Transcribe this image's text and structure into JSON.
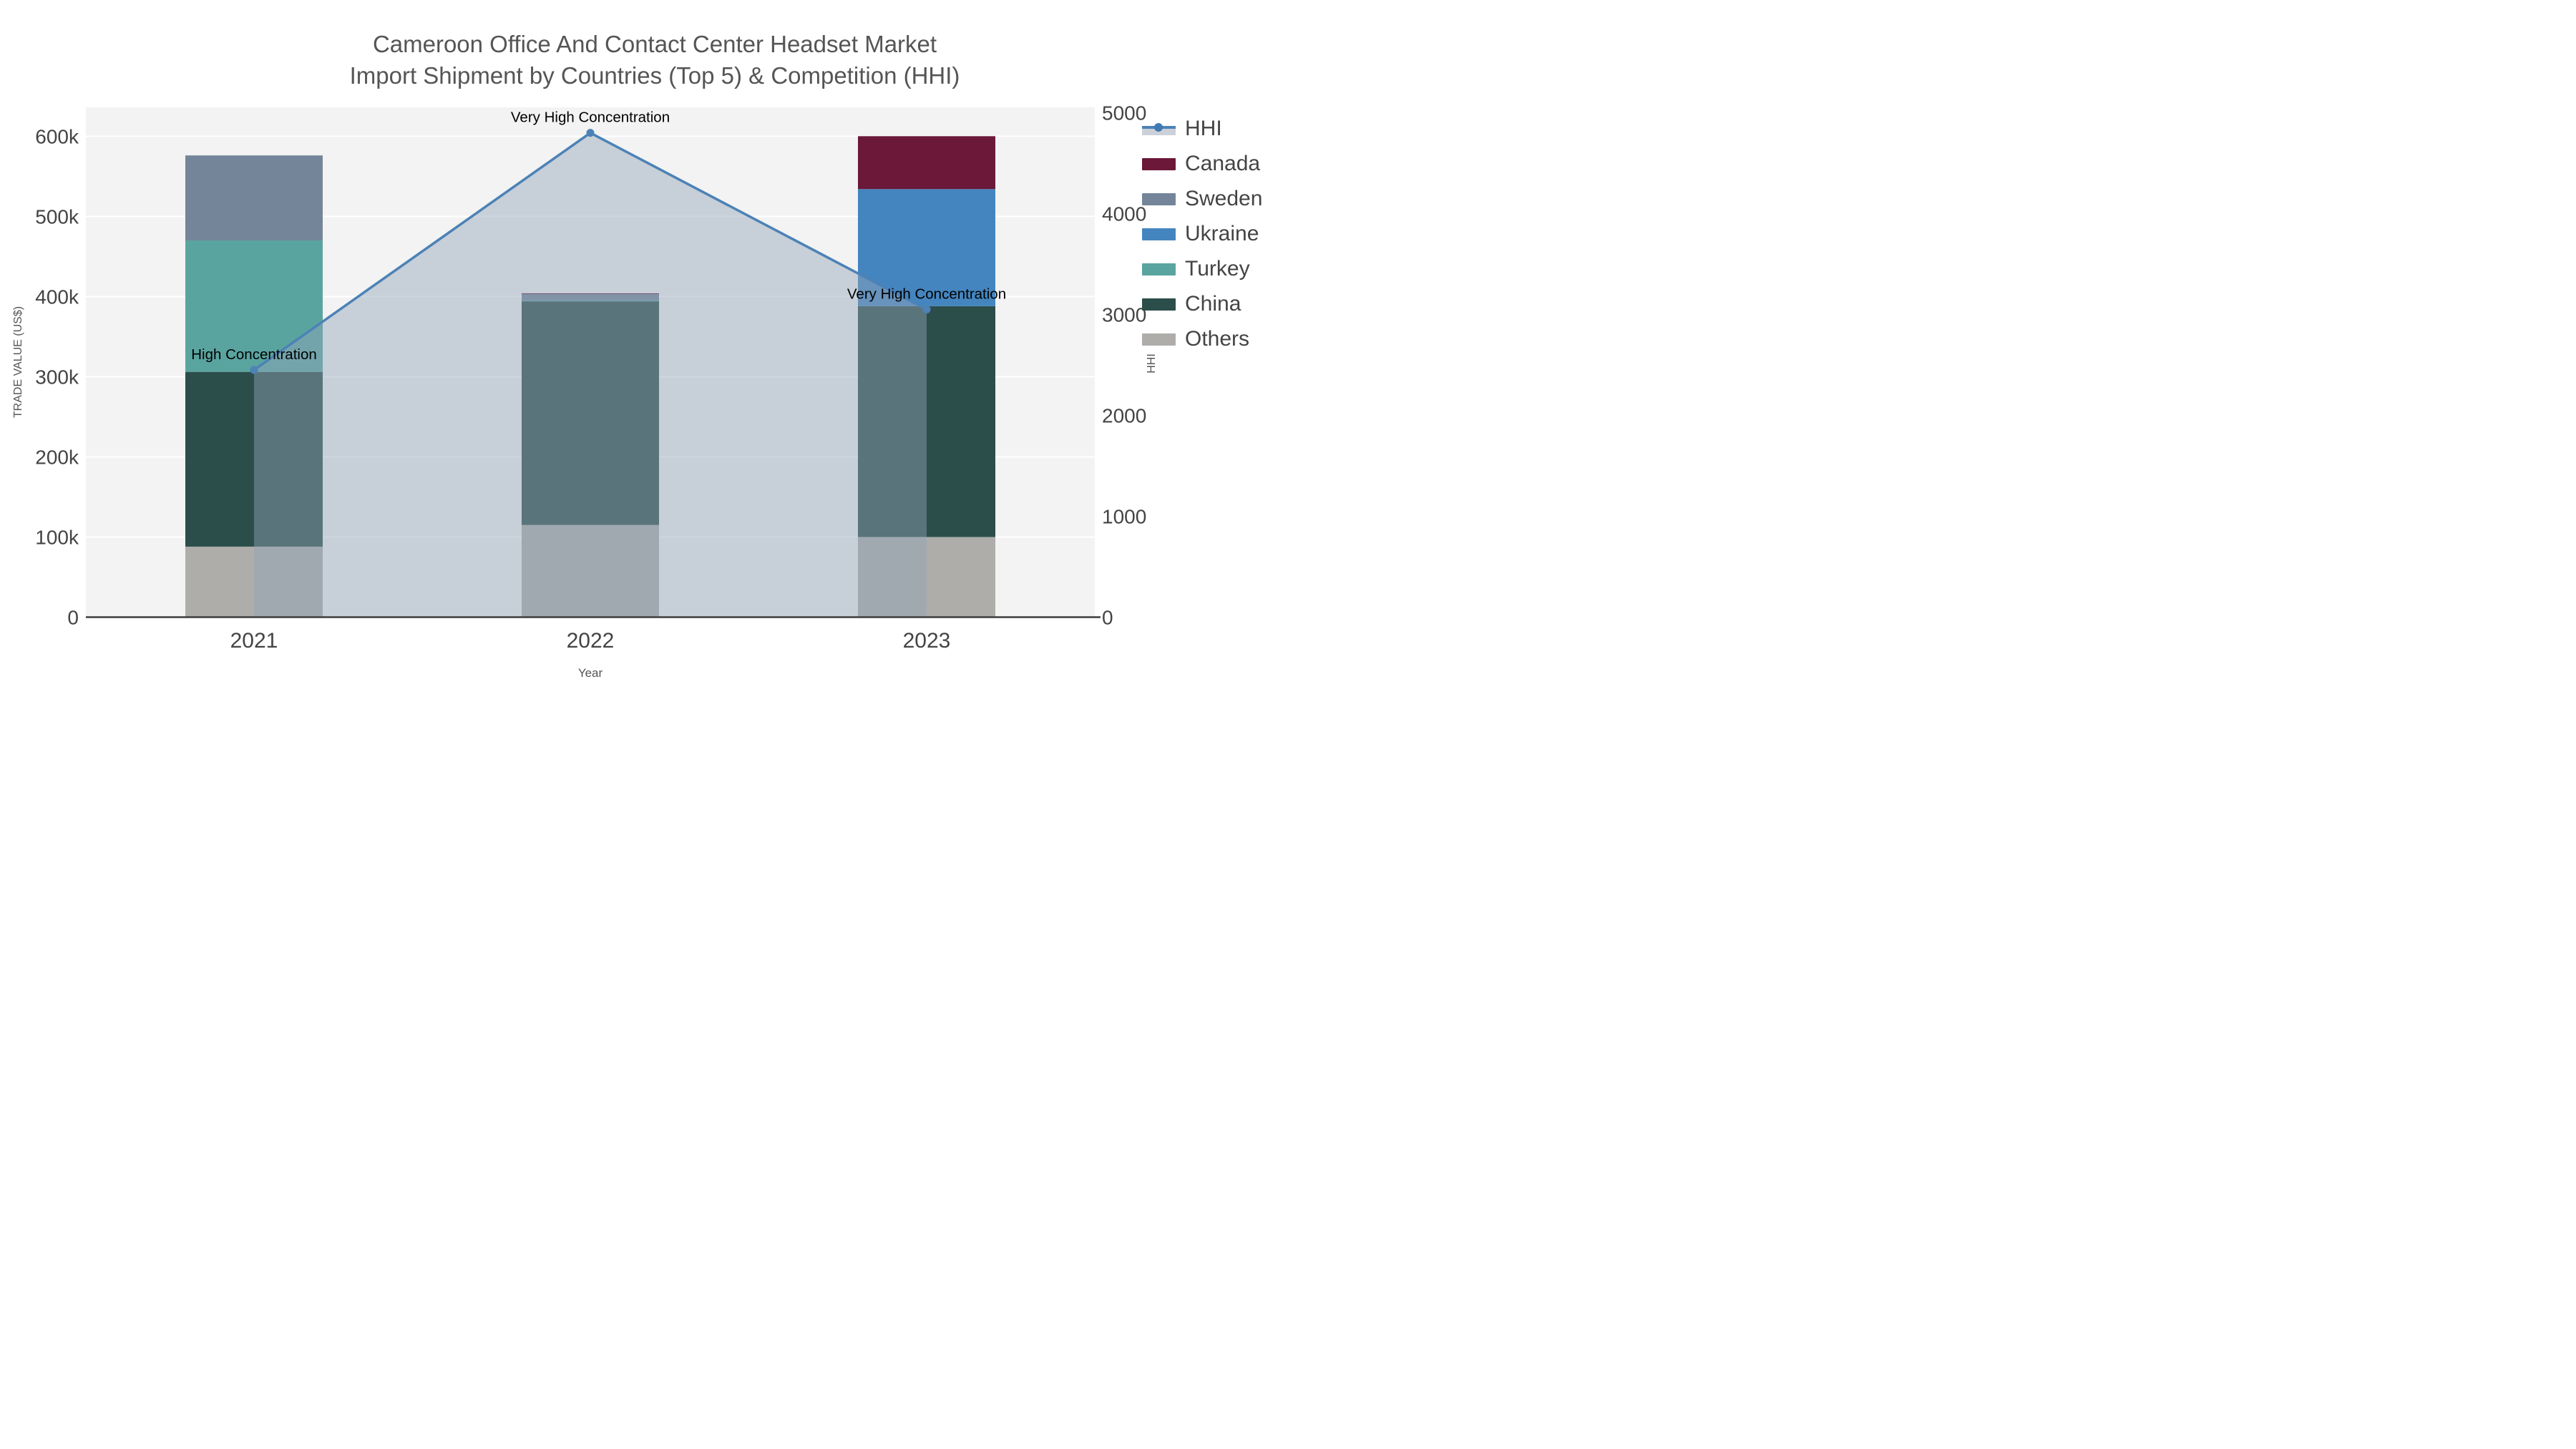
{
  "title": {
    "line1": "Cameroon Office And Contact Center Headset Market",
    "line2": "Import Shipment by Countries (Top 5) & Competition (HHI)"
  },
  "colors": {
    "title_text": "#555555",
    "tick_text": "#444444",
    "axis_title_text": "#555555",
    "annotation_text": "#000000",
    "plot_background": "#f2f3f2",
    "gridline": "#ffffff",
    "axis_line": "#3d3d3d",
    "hhi_line": "#4c82b6",
    "hhi_area_fill": "#93a3b8",
    "canada": "#6b1839",
    "sweden": "#74859a",
    "ukraine": "#4485bf",
    "turkey": "#5aa4a0",
    "china": "#2b4e4a",
    "others": "#aeadaa"
  },
  "chart_data": {
    "type": "bar",
    "subtype": "stacked-bars-with-line",
    "categories": [
      "2021",
      "2022",
      "2023"
    ],
    "series": [
      {
        "name": "Others",
        "color_key": "others",
        "values": [
          88000,
          115000,
          100000
        ]
      },
      {
        "name": "China",
        "color_key": "china",
        "values": [
          218000,
          279000,
          288000
        ]
      },
      {
        "name": "Turkey",
        "color_key": "turkey",
        "values": [
          164000,
          1000,
          0
        ]
      },
      {
        "name": "Ukraine",
        "color_key": "ukraine",
        "values": [
          0,
          0,
          146000
        ]
      },
      {
        "name": "Sweden",
        "color_key": "sweden",
        "values": [
          106000,
          8000,
          0
        ]
      },
      {
        "name": "Canada",
        "color_key": "canada",
        "values": [
          0,
          1000,
          66000
        ]
      }
    ],
    "line_series": {
      "name": "HHI",
      "values": [
        2450,
        4800,
        3050
      ],
      "fill_opacity": 0.45
    },
    "annotations": [
      "High Concentration",
      "Very High Concentration",
      "Very High Concentration"
    ],
    "y_left": {
      "title": "TRADE VALUE (US$)",
      "tick_labels": [
        "0",
        "100k",
        "200k",
        "300k",
        "400k",
        "500k",
        "600k"
      ],
      "tick_values": [
        0,
        100000,
        200000,
        300000,
        400000,
        500000,
        600000
      ],
      "max": 636000
    },
    "y_right": {
      "title": "HHI",
      "tick_labels": [
        "0",
        "1000",
        "2000",
        "3000",
        "4000",
        "5000"
      ],
      "tick_values": [
        0,
        1000,
        2000,
        3000,
        4000,
        5000
      ],
      "max": 5053
    },
    "x_axis": {
      "title": "Year"
    },
    "grid": "horizontal",
    "legend_position": "right",
    "legend": [
      "HHI",
      "Canada",
      "Sweden",
      "Ukraine",
      "Turkey",
      "China",
      "Others"
    ]
  }
}
